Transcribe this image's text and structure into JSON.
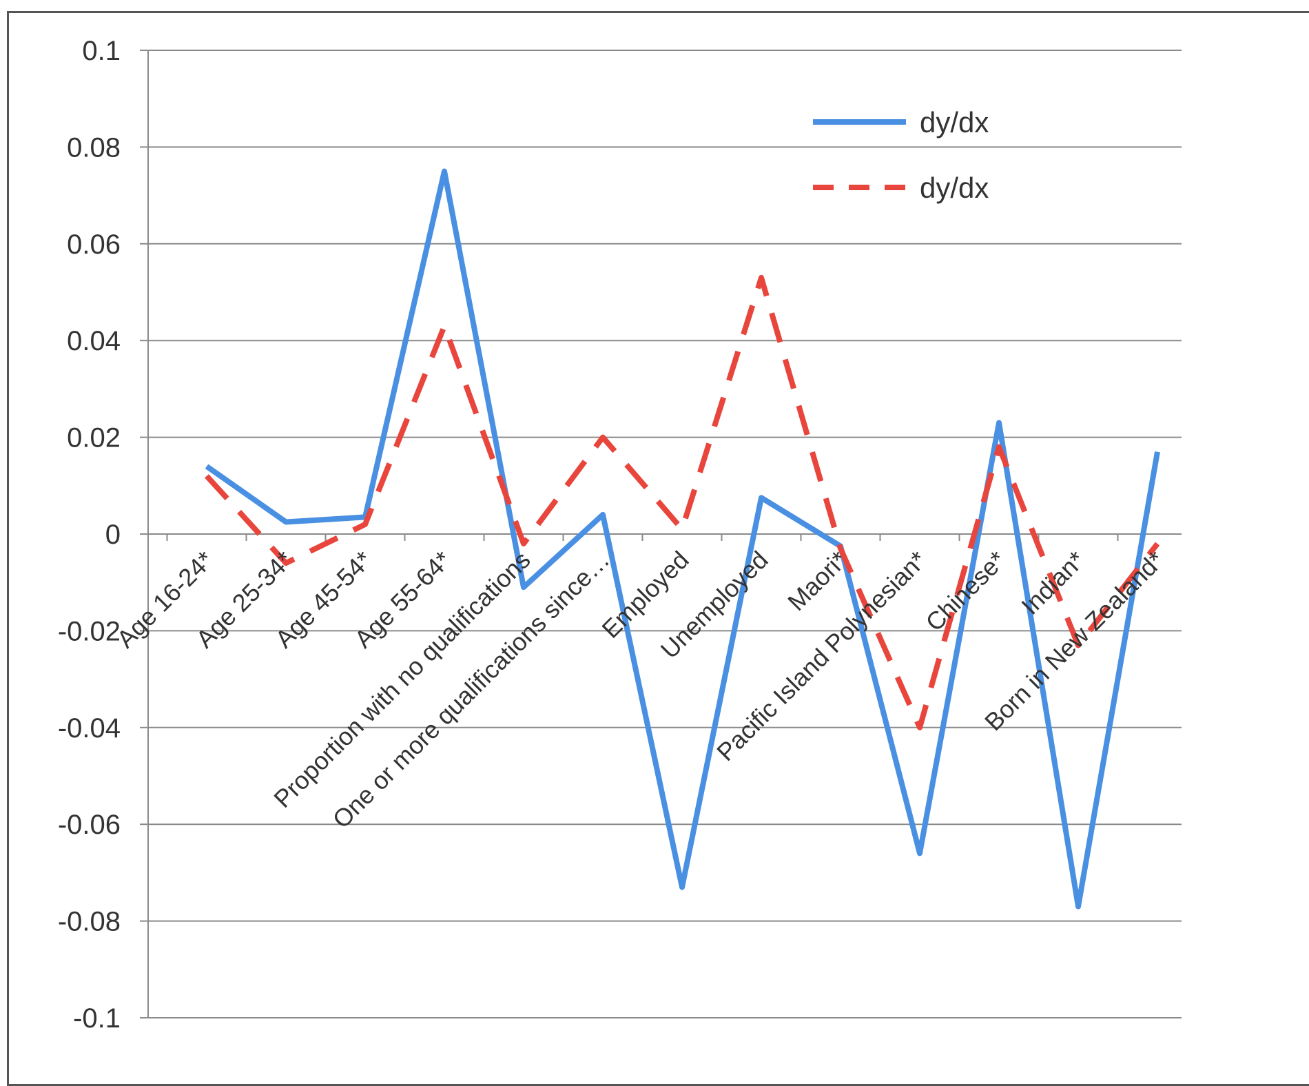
{
  "chart_data": {
    "type": "line",
    "categories": [
      "Age 16-24*",
      "Age 25-34*",
      "Age 45-54*",
      "Age 55-64*",
      "Proportion with no qualifications",
      "One or more qualifications since…",
      "Employed",
      "Unemployed",
      "Maori*",
      "Pacific Island Polynesian*",
      "Chinese*",
      "Indian*",
      "Born in New Zealand*"
    ],
    "series": [
      {
        "name": "dy/dx",
        "color": "#4a90e2",
        "style": "solid",
        "values": [
          0.014,
          0.0025,
          0.0035,
          0.075,
          -0.011,
          0.004,
          -0.073,
          0.0075,
          -0.0025,
          -0.066,
          0.023,
          -0.077,
          0.017
        ]
      },
      {
        "name": "dy/dx",
        "color": "#e8453c",
        "style": "dashed",
        "values": [
          0.012,
          -0.006,
          0.002,
          0.043,
          -0.002,
          0.02,
          0.001,
          0.053,
          -0.003,
          -0.04,
          0.018,
          -0.023,
          -0.002
        ]
      }
    ],
    "yticks": [
      "0.1",
      "0.08",
      "0.06",
      "0.04",
      "0.02",
      "0",
      "-0.02",
      "-0.04",
      "-0.06",
      "-0.08",
      "-0.1"
    ],
    "ylim": [
      -0.1,
      0.1
    ],
    "grid": true,
    "legend_position": "top-right"
  }
}
